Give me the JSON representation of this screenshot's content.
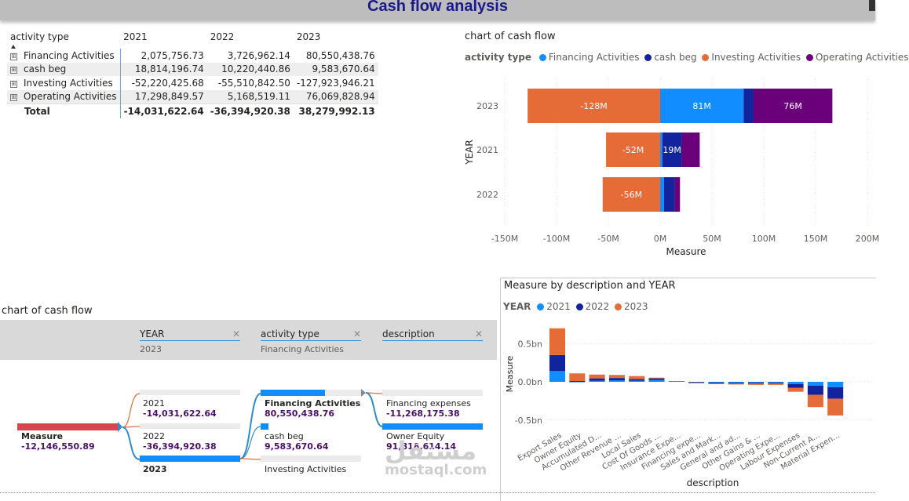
{
  "header": {
    "title": "Cash flow analysis"
  },
  "matrix": {
    "columns": [
      "activity type",
      "2021",
      "2022",
      "2023"
    ],
    "rows": [
      {
        "label": "Financing Activities",
        "v": [
          "2,075,756.73",
          "3,726,962.14",
          "80,550,438.76"
        ]
      },
      {
        "label": "cash beg",
        "v": [
          "18,814,196.74",
          "10,220,440.86",
          "9,583,670.64"
        ]
      },
      {
        "label": "Investing Activities",
        "v": [
          "-52,220,425.68",
          "-55,510,842.50",
          "-127,923,946.21"
        ]
      },
      {
        "label": "Operating Activities",
        "v": [
          "17,298,849.57",
          "5,168,519.11",
          "76,069,828.94"
        ]
      }
    ],
    "total": {
      "label": "Total",
      "v": [
        "-14,031,622.64",
        "-36,394,920.38",
        "38,279,992.13"
      ]
    }
  },
  "bar_chart": {
    "title": "chart of cash flow",
    "legend_title": "activity type",
    "legend": [
      {
        "name": "Financing Activities",
        "color": "#118dff"
      },
      {
        "name": "cash beg",
        "color": "#12239e"
      },
      {
        "name": "Investing Activities",
        "color": "#e66c37"
      },
      {
        "name": "Operating Activities",
        "color": "#6b007b"
      }
    ],
    "ylabel": "YEAR",
    "xlabel": "Measure",
    "xticks": [
      "-150M",
      "-100M",
      "-50M",
      "0M",
      "50M",
      "100M",
      "150M",
      "200M"
    ]
  },
  "decomp": {
    "title": "chart of cash flow",
    "levels": [
      {
        "name": "YEAR",
        "selected": "2023"
      },
      {
        "name": "activity type",
        "selected": "Financing Activities"
      },
      {
        "name": "description",
        "selected": ""
      }
    ],
    "root": {
      "label": "Measure",
      "value": "-12,146,550.89"
    },
    "year_nodes": [
      {
        "label": "2021",
        "value": "-14,031,622.64"
      },
      {
        "label": "2022",
        "value": "-36,394,920.38"
      },
      {
        "label": "2023",
        "value": ""
      }
    ],
    "activity_nodes": [
      {
        "label": "Financing Activities",
        "value": "80,550,438.76"
      },
      {
        "label": "cash beg",
        "value": "9,583,670.64"
      },
      {
        "label": "Investing Activities",
        "value": ""
      }
    ],
    "desc_nodes": [
      {
        "label": "Financing expenses",
        "value": "-11,268,175.38"
      },
      {
        "label": "Owner Equity",
        "value": "91,818,614.14"
      }
    ]
  },
  "col_chart": {
    "title": "Measure by description and YEAR",
    "legend_title": "YEAR",
    "legend": [
      {
        "name": "2021",
        "color": "#118dff"
      },
      {
        "name": "2022",
        "color": "#12239e"
      },
      {
        "name": "2023",
        "color": "#e66c37"
      }
    ],
    "ylabel": "Measure",
    "xlabel": "description",
    "yticks": [
      "0.5bn",
      "0.0bn",
      "-0.5bn"
    ]
  },
  "chart_data": [
    {
      "type": "bar",
      "orientation": "horizontal-stacked",
      "title": "chart of cash flow",
      "categories": [
        "2023",
        "2021",
        "2022"
      ],
      "series": [
        {
          "name": "Financing Activities",
          "values": [
            80.55,
            2.08,
            3.73
          ]
        },
        {
          "name": "cash beg",
          "values": [
            9.58,
            18.81,
            10.22
          ]
        },
        {
          "name": "Investing Activities",
          "values": [
            -127.92,
            -52.22,
            -55.51
          ]
        },
        {
          "name": "Operating Activities",
          "values": [
            76.07,
            17.3,
            5.17
          ]
        }
      ],
      "data_labels": [
        {
          "text": "-128M",
          "series": "Investing Activities",
          "category": "2023"
        },
        {
          "text": "81M",
          "series": "Financing Activities",
          "category": "2023"
        },
        {
          "text": "76M",
          "series": "Operating Activities",
          "category": "2023"
        },
        {
          "text": "-52M",
          "series": "Investing Activities",
          "category": "2021"
        },
        {
          "text": "19M",
          "series": "cash beg",
          "category": "2021"
        },
        {
          "text": "-56M",
          "series": "Investing Activities",
          "category": "2022"
        }
      ],
      "xlabel": "Measure",
      "ylabel": "YEAR",
      "xlim": [
        -150,
        200
      ],
      "units": "M"
    },
    {
      "type": "bar",
      "orientation": "vertical-stacked",
      "title": "Measure by description and YEAR",
      "categories": [
        "Export Sales",
        "Owner Equity",
        "Accumulated D...",
        "Other Revenue ...",
        "Local Sales",
        "Cost Of Goods ...",
        "Insurance Expe...",
        "Financing expe...",
        "Sales and Mark...",
        "General and ad...",
        "Other Gains & ...",
        "Operating Expe...",
        "Labour Expenses",
        "Non-Current A...",
        "Material Expen..."
      ],
      "series": [
        {
          "name": "2021",
          "values": [
            0.14,
            0.0,
            0.015,
            0.02,
            0.015,
            0.025,
            0.01,
            -0.005,
            -0.01,
            -0.01,
            -0.01,
            -0.01,
            -0.03,
            -0.05,
            -0.07
          ]
        },
        {
          "name": "2022",
          "values": [
            0.21,
            0.01,
            0.03,
            0.03,
            0.02,
            0.02,
            0.0,
            -0.005,
            -0.01,
            -0.01,
            -0.01,
            -0.01,
            -0.05,
            -0.12,
            -0.15
          ]
        },
        {
          "name": "2023",
          "values": [
            0.35,
            0.1,
            0.05,
            0.04,
            0.04,
            0.01,
            0.0,
            -0.01,
            -0.01,
            -0.015,
            -0.02,
            -0.02,
            -0.05,
            -0.16,
            -0.22
          ]
        }
      ],
      "xlabel": "description",
      "ylabel": "Measure",
      "ylim": [
        -0.6,
        0.8
      ],
      "units": "bn"
    }
  ],
  "watermark": {
    "text": "mostaql.com"
  }
}
